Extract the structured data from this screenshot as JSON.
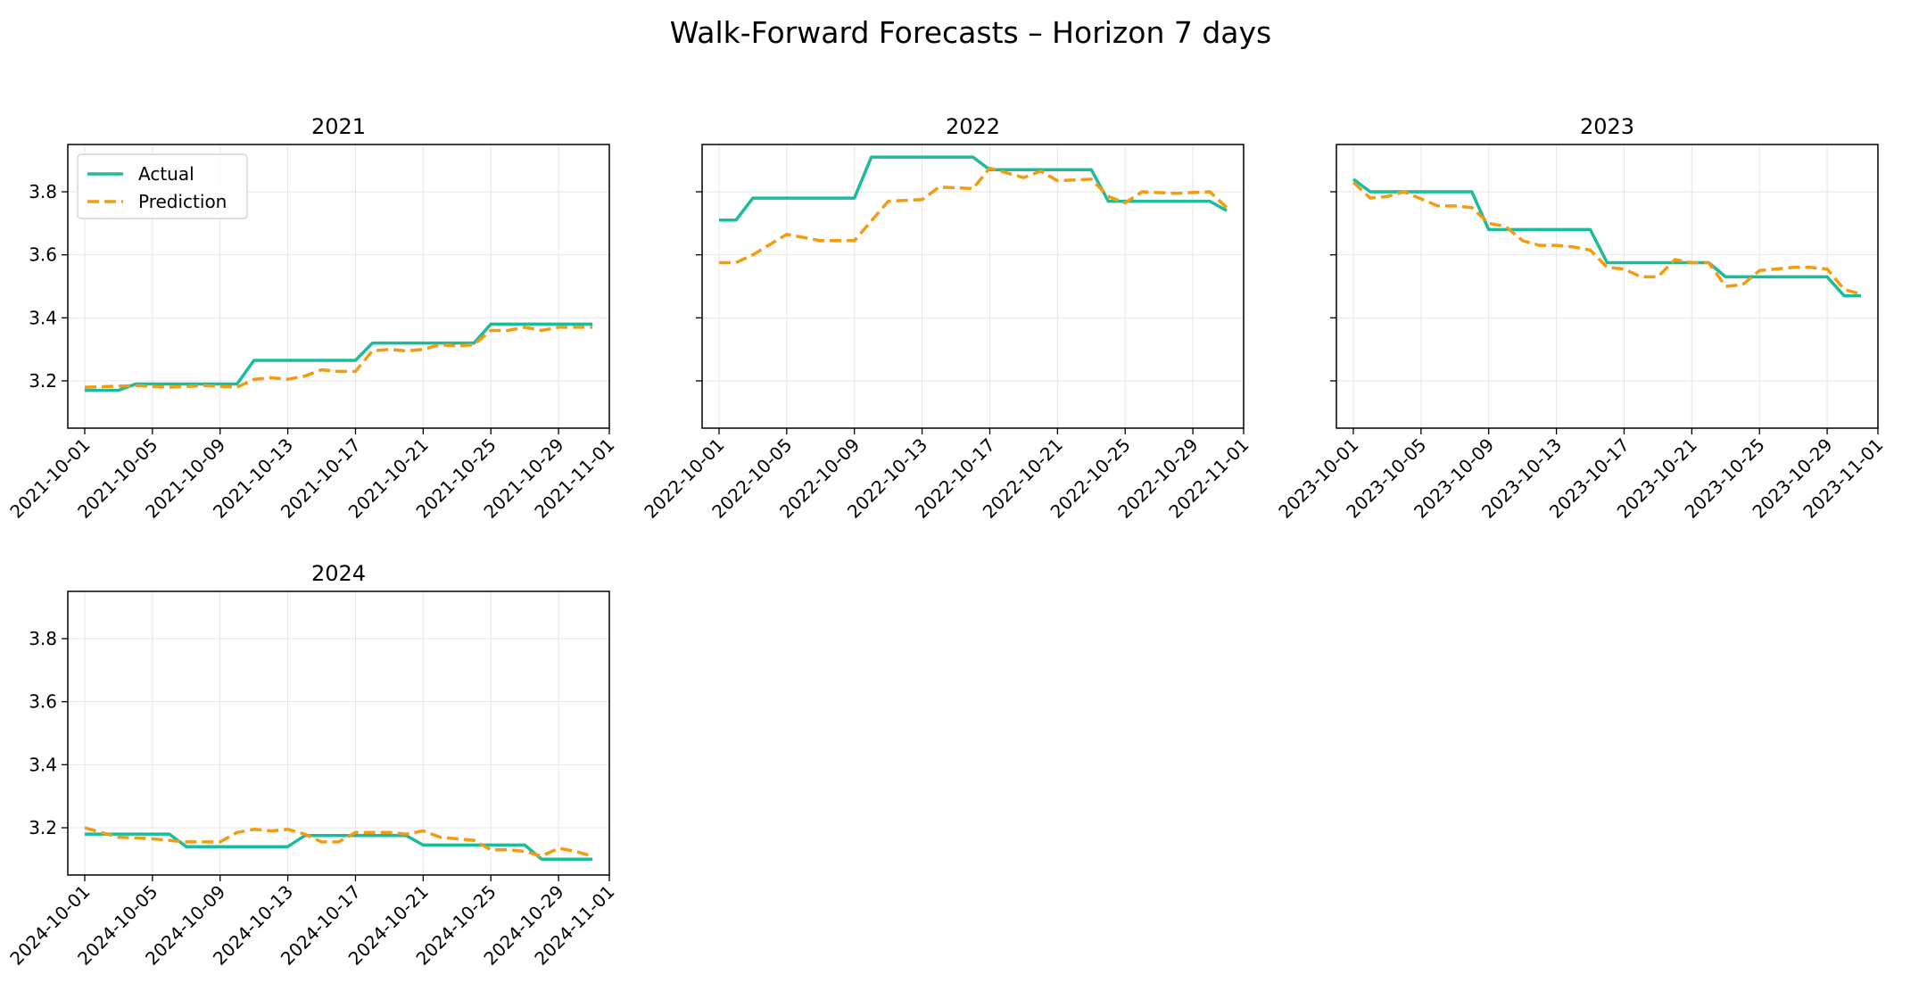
{
  "figure": {
    "title": "Walk-Forward Forecasts – Horizon 7 days"
  },
  "colors": {
    "actual": "#1abc9c",
    "prediction": "#f39c12",
    "grid": "#e6e6e6"
  },
  "legend": {
    "placement": "upper-left of first panel",
    "entries": [
      "Actual",
      "Prediction"
    ]
  },
  "chart_data": [
    {
      "type": "line",
      "title": "2021",
      "xlabel": "",
      "ylabel": "",
      "ylim": [
        3.05,
        3.95
      ],
      "xlim": [
        "2021-09-30",
        "2021-11-01"
      ],
      "yticks": [
        "3.2",
        "3.4",
        "3.6",
        "3.8"
      ],
      "xticks": [
        "2021-10-01",
        "2021-10-05",
        "2021-10-09",
        "2021-10-13",
        "2021-10-17",
        "2021-10-21",
        "2021-10-25",
        "2021-10-29",
        "2021-11-01"
      ],
      "grid": true,
      "series": [
        {
          "name": "Actual",
          "style": "solid",
          "x": [
            "2021-10-01",
            "2021-10-03",
            "2021-10-04",
            "2021-10-10",
            "2021-10-11",
            "2021-10-17",
            "2021-10-18",
            "2021-10-24",
            "2021-10-25",
            "2021-10-31"
          ],
          "y": [
            3.17,
            3.17,
            3.19,
            3.19,
            3.265,
            3.265,
            3.32,
            3.32,
            3.38,
            3.38
          ]
        },
        {
          "name": "Prediction",
          "style": "dashed",
          "x": [
            "2021-10-01",
            "2021-10-04",
            "2021-10-06",
            "2021-10-08",
            "2021-10-10",
            "2021-10-11",
            "2021-10-12",
            "2021-10-13",
            "2021-10-14",
            "2021-10-15",
            "2021-10-16",
            "2021-10-17",
            "2021-10-18",
            "2021-10-19",
            "2021-10-20",
            "2021-10-21",
            "2021-10-22",
            "2021-10-23",
            "2021-10-24",
            "2021-10-25",
            "2021-10-26",
            "2021-10-27",
            "2021-10-28",
            "2021-10-29",
            "2021-10-30",
            "2021-10-31"
          ],
          "y": [
            3.18,
            3.185,
            3.18,
            3.185,
            3.18,
            3.205,
            3.21,
            3.205,
            3.215,
            3.235,
            3.23,
            3.23,
            3.295,
            3.3,
            3.295,
            3.3,
            3.315,
            3.31,
            3.315,
            3.36,
            3.36,
            3.37,
            3.36,
            3.37,
            3.37,
            3.37
          ]
        }
      ]
    },
    {
      "type": "line",
      "title": "2022",
      "xlabel": "",
      "ylabel": "",
      "ylim": [
        3.05,
        3.95
      ],
      "xlim": [
        "2022-09-30",
        "2022-11-01"
      ],
      "yticks": [
        "3.2",
        "3.4",
        "3.6",
        "3.8"
      ],
      "xticks": [
        "2022-10-01",
        "2022-10-05",
        "2022-10-09",
        "2022-10-13",
        "2022-10-17",
        "2022-10-21",
        "2022-10-25",
        "2022-10-29",
        "2022-11-01"
      ],
      "grid": true,
      "series": [
        {
          "name": "Actual",
          "style": "solid",
          "x": [
            "2022-10-01",
            "2022-10-02",
            "2022-10-03",
            "2022-10-09",
            "2022-10-10",
            "2022-10-16",
            "2022-10-17",
            "2022-10-23",
            "2022-10-24",
            "2022-10-30",
            "2022-10-31"
          ],
          "y": [
            3.71,
            3.71,
            3.78,
            3.78,
            3.91,
            3.91,
            3.87,
            3.87,
            3.77,
            3.77,
            3.74
          ]
        },
        {
          "name": "Prediction",
          "style": "dashed",
          "x": [
            "2022-10-01",
            "2022-10-02",
            "2022-10-03",
            "2022-10-05",
            "2022-10-07",
            "2022-10-09",
            "2022-10-11",
            "2022-10-13",
            "2022-10-14",
            "2022-10-16",
            "2022-10-17",
            "2022-10-18",
            "2022-10-19",
            "2022-10-20",
            "2022-10-21",
            "2022-10-23",
            "2022-10-24",
            "2022-10-25",
            "2022-10-26",
            "2022-10-28",
            "2022-10-30",
            "2022-10-31"
          ],
          "y": [
            3.575,
            3.575,
            3.6,
            3.665,
            3.645,
            3.645,
            3.77,
            3.775,
            3.815,
            3.81,
            3.875,
            3.86,
            3.845,
            3.865,
            3.835,
            3.84,
            3.785,
            3.765,
            3.8,
            3.795,
            3.8,
            3.75
          ]
        }
      ]
    },
    {
      "type": "line",
      "title": "2023",
      "xlabel": "",
      "ylabel": "",
      "ylim": [
        3.05,
        3.95
      ],
      "xlim": [
        "2023-09-30",
        "2023-11-01"
      ],
      "yticks": [
        "3.2",
        "3.4",
        "3.6",
        "3.8"
      ],
      "xticks": [
        "2023-10-01",
        "2023-10-05",
        "2023-10-09",
        "2023-10-13",
        "2023-10-17",
        "2023-10-21",
        "2023-10-25",
        "2023-10-29",
        "2023-11-01"
      ],
      "grid": true,
      "series": [
        {
          "name": "Actual",
          "style": "solid",
          "x": [
            "2023-10-01",
            "2023-10-02",
            "2023-10-08",
            "2023-10-09",
            "2023-10-15",
            "2023-10-16",
            "2023-10-22",
            "2023-10-23",
            "2023-10-29",
            "2023-10-30",
            "2023-10-31"
          ],
          "y": [
            3.84,
            3.8,
            3.8,
            3.68,
            3.68,
            3.575,
            3.575,
            3.53,
            3.53,
            3.47,
            3.47
          ]
        },
        {
          "name": "Prediction",
          "style": "dashed",
          "x": [
            "2023-10-01",
            "2023-10-02",
            "2023-10-03",
            "2023-10-04",
            "2023-10-06",
            "2023-10-07",
            "2023-10-08",
            "2023-10-09",
            "2023-10-10",
            "2023-10-11",
            "2023-10-12",
            "2023-10-13",
            "2023-10-14",
            "2023-10-15",
            "2023-10-16",
            "2023-10-17",
            "2023-10-18",
            "2023-10-19",
            "2023-10-20",
            "2023-10-21",
            "2023-10-22",
            "2023-10-23",
            "2023-10-24",
            "2023-10-25",
            "2023-10-26",
            "2023-10-27",
            "2023-10-28",
            "2023-10-29",
            "2023-10-30",
            "2023-10-31"
          ],
          "y": [
            3.83,
            3.78,
            3.785,
            3.8,
            3.755,
            3.755,
            3.75,
            3.7,
            3.69,
            3.645,
            3.63,
            3.63,
            3.625,
            3.615,
            3.56,
            3.555,
            3.53,
            3.53,
            3.585,
            3.575,
            3.575,
            3.5,
            3.505,
            3.55,
            3.555,
            3.56,
            3.56,
            3.555,
            3.49,
            3.475
          ]
        }
      ]
    },
    {
      "type": "line",
      "title": "2024",
      "xlabel": "",
      "ylabel": "",
      "ylim": [
        3.05,
        3.95
      ],
      "xlim": [
        "2024-09-30",
        "2024-11-01"
      ],
      "yticks": [
        "3.2",
        "3.4",
        "3.6",
        "3.8"
      ],
      "xticks": [
        "2024-10-01",
        "2024-10-05",
        "2024-10-09",
        "2024-10-13",
        "2024-10-17",
        "2024-10-21",
        "2024-10-25",
        "2024-10-29",
        "2024-11-01"
      ],
      "grid": true,
      "series": [
        {
          "name": "Actual",
          "style": "solid",
          "x": [
            "2024-10-01",
            "2024-10-06",
            "2024-10-07",
            "2024-10-13",
            "2024-10-14",
            "2024-10-20",
            "2024-10-21",
            "2024-10-27",
            "2024-10-28",
            "2024-10-31"
          ],
          "y": [
            3.18,
            3.18,
            3.14,
            3.14,
            3.175,
            3.175,
            3.145,
            3.145,
            3.1,
            3.1
          ]
        },
        {
          "name": "Prediction",
          "style": "dashed",
          "x": [
            "2024-10-01",
            "2024-10-02",
            "2024-10-03",
            "2024-10-05",
            "2024-10-06",
            "2024-10-07",
            "2024-10-09",
            "2024-10-10",
            "2024-10-11",
            "2024-10-12",
            "2024-10-13",
            "2024-10-14",
            "2024-10-15",
            "2024-10-16",
            "2024-10-17",
            "2024-10-18",
            "2024-10-19",
            "2024-10-20",
            "2024-10-21",
            "2024-10-22",
            "2024-10-23",
            "2024-10-24",
            "2024-10-25",
            "2024-10-26",
            "2024-10-27",
            "2024-10-28",
            "2024-10-29",
            "2024-10-30",
            "2024-10-31"
          ],
          "y": [
            3.2,
            3.185,
            3.17,
            3.165,
            3.16,
            3.155,
            3.155,
            3.185,
            3.195,
            3.19,
            3.195,
            3.18,
            3.155,
            3.155,
            3.185,
            3.185,
            3.185,
            3.18,
            3.19,
            3.17,
            3.165,
            3.16,
            3.13,
            3.13,
            3.125,
            3.11,
            3.135,
            3.125,
            3.11
          ]
        }
      ]
    }
  ]
}
